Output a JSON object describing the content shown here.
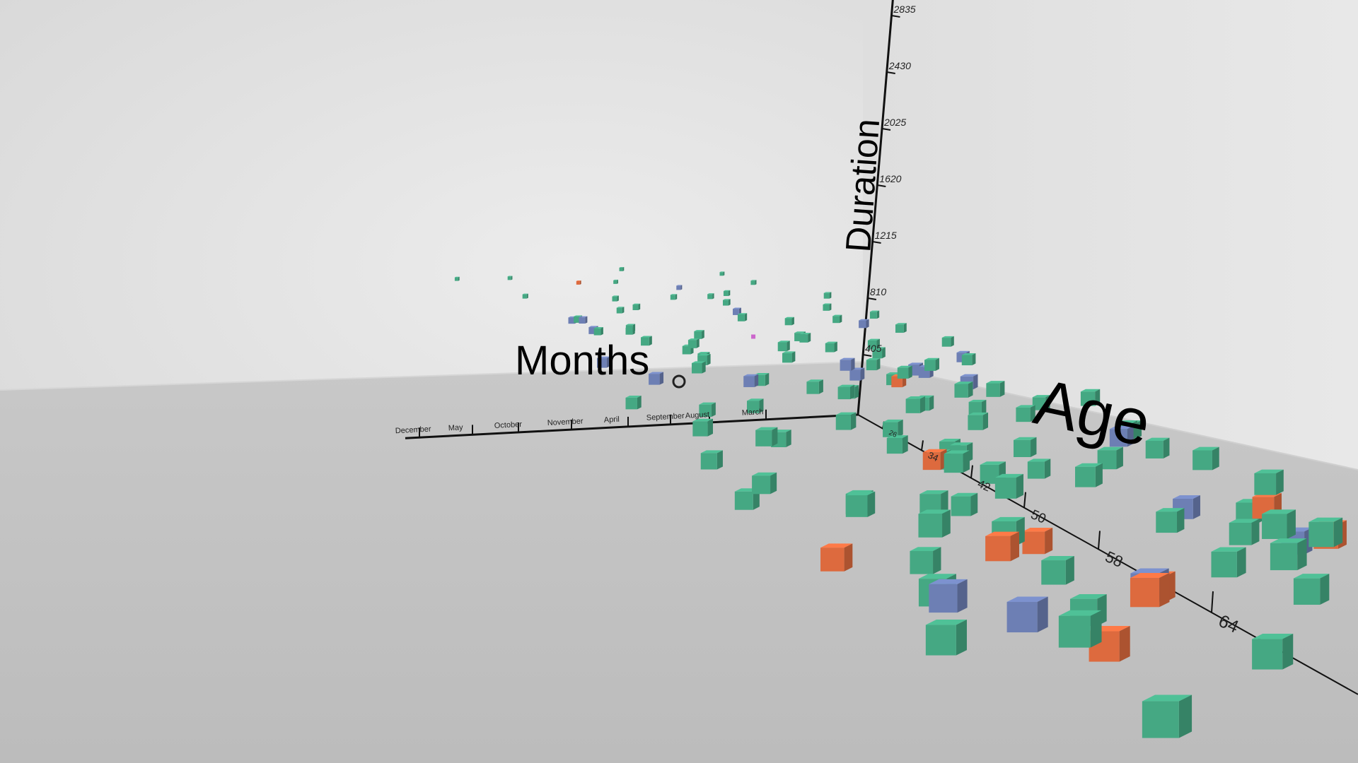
{
  "chart_data": {
    "type": "scatter",
    "dimensions": 3,
    "xlabel": "Months",
    "ylabel": "Duration",
    "zlabel": "Age",
    "x_categories": [
      "December",
      "May",
      "October",
      "November",
      "April",
      "September",
      "August",
      "March"
    ],
    "y_ticks": [
      "405",
      "810",
      "1215",
      "1620",
      "2025",
      "2430",
      "2835"
    ],
    "z_ticks": [
      "26",
      "34",
      "42",
      "50",
      "58",
      "64"
    ],
    "series_colors": [
      "#45a883",
      "#6d7fb4",
      "#dd6a3e"
    ],
    "highlight_color": "#cc66cc",
    "points": [
      {
        "x": 2.1,
        "y": 1216,
        "z": 66,
        "s": 0
      },
      {
        "x": 4.8,
        "y": 3053,
        "z": 68,
        "s": 0
      },
      {
        "x": 4.6,
        "y": 1147,
        "z": 68,
        "s": 1
      },
      {
        "x": 8.5,
        "y": 1100,
        "z": 67,
        "s": 0
      },
      {
        "x": 2.2,
        "y": 1007,
        "z": 64,
        "s": 0
      },
      {
        "x": 0.5,
        "y": 853,
        "z": 62,
        "s": 0
      },
      {
        "x": 7.8,
        "y": 1223,
        "z": 59,
        "s": 0
      },
      {
        "x": 9.7,
        "y": 1068,
        "z": 57,
        "s": 0
      },
      {
        "x": 8.2,
        "y": 1210,
        "z": 57,
        "s": 1
      },
      {
        "x": 3.5,
        "y": 833,
        "z": 57,
        "s": 0
      },
      {
        "x": 6.6,
        "y": 956,
        "z": 57,
        "s": 2
      },
      {
        "x": 5.3,
        "y": 1204,
        "z": 55,
        "s": 2
      },
      {
        "x": 0.7,
        "y": 766,
        "z": 55,
        "s": 0
      },
      {
        "x": 8.8,
        "y": 1167,
        "z": 54,
        "s": 1
      },
      {
        "x": 5.0,
        "y": 1170,
        "z": 54,
        "s": 1
      },
      {
        "x": 8.7,
        "y": 1143,
        "z": 53,
        "s": 0
      },
      {
        "x": 5.5,
        "y": 862,
        "z": 52,
        "s": 0
      },
      {
        "x": -0.9,
        "y": 1210,
        "z": 52,
        "s": 0
      },
      {
        "x": 1.8,
        "y": 1205,
        "z": 52,
        "s": 0
      },
      {
        "x": -0.1,
        "y": 964,
        "z": 52,
        "s": 1
      },
      {
        "x": 1.0,
        "y": 860,
        "z": 51,
        "s": 0
      },
      {
        "x": 3.6,
        "y": 870,
        "z": 50,
        "s": 2
      },
      {
        "x": 2.3,
        "y": 1025,
        "z": 50,
        "s": 0
      },
      {
        "x": 0.2,
        "y": 1142,
        "z": 49,
        "s": 0
      },
      {
        "x": 1.1,
        "y": 1221,
        "z": 49,
        "s": 0
      },
      {
        "x": 6.3,
        "y": 1162,
        "z": 49,
        "s": 2
      },
      {
        "x": 5.9,
        "y": 1202,
        "z": 48,
        "s": 0
      },
      {
        "x": -0.2,
        "y": 1052,
        "z": 48,
        "s": 2
      },
      {
        "x": 4.9,
        "y": 888,
        "z": 48,
        "s": 0
      },
      {
        "x": 7.0,
        "y": 1219,
        "z": 47,
        "s": 0
      },
      {
        "x": 8.8,
        "y": 1001,
        "z": 47,
        "s": 2
      },
      {
        "x": 6.8,
        "y": 871,
        "z": 46,
        "s": 0
      },
      {
        "x": -0.2,
        "y": 873,
        "z": 46,
        "s": 1
      },
      {
        "x": 4.4,
        "y": 904,
        "z": 45,
        "s": 2
      },
      {
        "x": 0.5,
        "y": 890,
        "z": 45,
        "s": 0
      },
      {
        "x": -0.2,
        "y": 1007,
        "z": 44,
        "s": 2
      },
      {
        "x": 7.5,
        "y": 1179,
        "z": 44,
        "s": 0
      },
      {
        "x": -0.2,
        "y": 1185,
        "z": 44,
        "s": 0
      },
      {
        "x": 1.3,
        "y": 864,
        "z": 43,
        "s": 0
      },
      {
        "x": 4.4,
        "y": 1185,
        "z": 43,
        "s": 0
      },
      {
        "x": 5.8,
        "y": 1091,
        "z": 43,
        "s": 0
      },
      {
        "x": -0.2,
        "y": 901,
        "z": 43,
        "s": 0
      },
      {
        "x": 6.9,
        "y": 1052,
        "z": 42,
        "s": 0
      },
      {
        "x": 0.7,
        "y": 886,
        "z": 42,
        "s": 1
      },
      {
        "x": 2.6,
        "y": 1166,
        "z": 42,
        "s": 0
      },
      {
        "x": 4.6,
        "y": 922,
        "z": 41,
        "s": 0
      },
      {
        "x": 0.1,
        "y": 1175,
        "z": 41,
        "s": 0
      },
      {
        "x": 1.6,
        "y": 1144,
        "z": 40,
        "s": 0
      },
      {
        "x": 4.5,
        "y": 1178,
        "z": 40,
        "s": 0
      },
      {
        "x": 3.8,
        "y": 1080,
        "z": 40,
        "s": 0
      },
      {
        "x": 8.1,
        "y": 905,
        "z": 39,
        "s": 0
      },
      {
        "x": 7.8,
        "y": 1018,
        "z": 39,
        "s": 0
      },
      {
        "x": 4.3,
        "y": 1059,
        "z": 38,
        "s": 2
      },
      {
        "x": 0.8,
        "y": 1161,
        "z": 38,
        "s": 1
      },
      {
        "x": 0.1,
        "y": 1058,
        "z": 38,
        "s": 0
      },
      {
        "x": 2.3,
        "y": 1046,
        "z": 37,
        "s": 0
      },
      {
        "x": 3.5,
        "y": 1031,
        "z": 37,
        "s": 0
      },
      {
        "x": 2.0,
        "y": 877,
        "z": 37,
        "s": 0
      },
      {
        "x": 3.9,
        "y": 985,
        "z": 37,
        "s": 0
      },
      {
        "x": 0.1,
        "y": 1063,
        "z": 36,
        "s": 0
      },
      {
        "x": 7.9,
        "y": 1001,
        "z": 36,
        "s": 0
      },
      {
        "x": 6.9,
        "y": 1154,
        "z": 36,
        "s": 0
      },
      {
        "x": 3.1,
        "y": 926,
        "z": 35,
        "s": 0
      },
      {
        "x": 4.1,
        "y": 973,
        "z": 35,
        "s": 0
      },
      {
        "x": -0.3,
        "y": 994,
        "z": 35,
        "s": 0
      },
      {
        "x": 4.8,
        "y": 1098,
        "z": 34,
        "s": 0
      },
      {
        "x": 2.3,
        "y": 1045,
        "z": 34,
        "s": 0
      },
      {
        "x": 6.0,
        "y": 993,
        "z": 34,
        "s": 0
      },
      {
        "x": 3.9,
        "y": 1025,
        "z": 34,
        "s": 0
      },
      {
        "x": 7.5,
        "y": 1106,
        "z": 34,
        "s": 0
      },
      {
        "x": 3.2,
        "y": 1123,
        "z": 33,
        "s": 0
      },
      {
        "x": 1.1,
        "y": 1014,
        "z": 33,
        "s": 0
      },
      {
        "x": -0.1,
        "y": 1109,
        "z": 33,
        "s": 0
      },
      {
        "x": 1.4,
        "y": 1140,
        "z": 32,
        "s": 0
      },
      {
        "x": 2.0,
        "y": 1147,
        "z": 32,
        "s": 0
      },
      {
        "x": 1.6,
        "y": 1133,
        "z": 31,
        "s": 1
      },
      {
        "x": 0.2,
        "y": 947,
        "z": 31,
        "s": 0
      },
      {
        "x": 1.4,
        "y": 936,
        "z": 31,
        "s": 0
      },
      {
        "x": 2.4,
        "y": 989,
        "z": 31,
        "s": 0
      },
      {
        "x": 5.3,
        "y": 963,
        "z": 30,
        "s": 0
      },
      {
        "x": 3.6,
        "y": 1032,
        "z": 30,
        "s": 0
      },
      {
        "x": 4.2,
        "y": 1084,
        "z": 30,
        "s": 0
      },
      {
        "x": 6.2,
        "y": 953,
        "z": 30,
        "s": 0
      },
      {
        "x": 3.2,
        "y": 960,
        "z": 29,
        "s": 0
      },
      {
        "x": 7.3,
        "y": 965,
        "z": 29,
        "s": 0
      },
      {
        "x": 4.6,
        "y": 1017,
        "z": 28,
        "s": 0
      },
      {
        "x": 1.7,
        "y": 1035,
        "z": 28,
        "s": 1
      },
      {
        "x": 1.5,
        "y": 1013,
        "z": 28,
        "s": 1
      },
      {
        "x": 2.1,
        "y": 971,
        "z": 28,
        "s": 0
      },
      {
        "x": 2.0,
        "y": 953,
        "z": 28,
        "s": 2
      },
      {
        "x": 1.4,
        "y": 1064,
        "z": 28,
        "s": 0
      },
      {
        "x": 2.8,
        "y": 1020,
        "z": 28,
        "s": 1
      },
      {
        "x": 4.8,
        "y": 1012,
        "z": 28,
        "s": 1
      },
      {
        "x": 1.9,
        "y": 1016,
        "z": 28,
        "s": 0
      },
      {
        "x": 3.0,
        "y": 1098,
        "z": 28,
        "s": 1
      },
      {
        "x": 6.6,
        "y": 1067,
        "z": 28,
        "s": 1
      },
      {
        "x": 5.5,
        "y": 1062,
        "z": 27,
        "s": 0
      },
      {
        "x": 0.4,
        "y": 1017,
        "z": 27,
        "s": 0
      },
      {
        "x": 2.2,
        "y": 1017,
        "z": 27,
        "s": 0
      },
      {
        "x": 5.1,
        "y": 1047,
        "z": 26,
        "s": 0
      },
      {
        "x": 1.8,
        "y": 1030,
        "z": 26,
        "s": 0
      },
      {
        "x": 0.2,
        "y": 968,
        "z": 26,
        "s": 1
      },
      {
        "x": 7.0,
        "y": 1067,
        "z": 26,
        "s": 1
      },
      {
        "x": 3.5,
        "y": 1033,
        "z": 26,
        "s": 0
      },
      {
        "x": 0.2,
        "y": 1017,
        "z": 25,
        "s": 0
      },
      {
        "x": 4.8,
        "y": 994,
        "z": 25,
        "s": 0
      },
      {
        "x": 2.4,
        "y": 1021,
        "z": 25,
        "s": 0
      },
      {
        "x": 1.6,
        "y": 1026,
        "z": 25,
        "s": 0
      },
      {
        "x": 3.3,
        "y": 1047,
        "z": 25,
        "s": 0
      },
      {
        "x": 4.8,
        "y": 987,
        "z": 24,
        "s": 0
      },
      {
        "x": 0.8,
        "y": 1066,
        "z": 24,
        "s": 0
      },
      {
        "x": 5.6,
        "y": 1069,
        "z": 24,
        "s": 0
      },
      {
        "x": 2.7,
        "y": 1042,
        "z": 24,
        "s": 0
      },
      {
        "x": 2.6,
        "y": 1030,
        "z": 24,
        "s": 0
      },
      {
        "x": 4.7,
        "y": 1031,
        "z": 24,
        "s": 0
      },
      {
        "x": 1.2,
        "y": 1042,
        "z": 23,
        "s": 1
      },
      {
        "x": 4.3,
        "y": 1024,
        "z": 23,
        "s": 0
      },
      {
        "x": 5.3,
        "y": 1009,
        "z": 22,
        "s": 0
      },
      {
        "x": 6.0,
        "y": 1028,
        "z": 22,
        "s": 1
      },
      {
        "x": 5.9,
        "y": 1017,
        "z": 22,
        "s": 0
      },
      {
        "x": 5.3,
        "y": 1029,
        "z": 22,
        "s": 0
      },
      {
        "x": 1.4,
        "y": 1016,
        "z": 22,
        "s": 0
      },
      {
        "x": 0.7,
        "y": 1034,
        "z": 22,
        "s": 0
      },
      {
        "x": 2.3,
        "y": 1018,
        "z": 22,
        "s": 0
      },
      {
        "x": 3.2,
        "y": 1066,
        "z": 22,
        "s": 0
      },
      {
        "x": 3.0,
        "y": 1041,
        "z": 21,
        "s": 1
      },
      {
        "x": 6.1,
        "y": 1040,
        "z": 21,
        "s": 1
      },
      {
        "x": 6.0,
        "y": 1045,
        "z": 21,
        "s": 0
      },
      {
        "x": 1.3,
        "y": 1038,
        "z": 21,
        "s": 0
      },
      {
        "x": 5.9,
        "y": 1037,
        "z": 21,
        "s": 1
      },
      {
        "x": 4.6,
        "y": 1043,
        "z": 20,
        "s": 0
      },
      {
        "x": 2.9,
        "y": 1042,
        "z": 20,
        "s": 0
      },
      {
        "x": 4.9,
        "y": 1025,
        "z": 20,
        "s": 0
      },
      {
        "x": 1.0,
        "y": 1055,
        "z": 20,
        "s": 0
      },
      {
        "x": 2.6,
        "y": 1040,
        "z": 19,
        "s": 0
      },
      {
        "x": 4.7,
        "y": 1043,
        "z": 19,
        "s": 0
      },
      {
        "x": 3.6,
        "y": 1032,
        "z": 19,
        "s": 0
      },
      {
        "x": 2.9,
        "y": 1023,
        "z": 19,
        "s": 0
      },
      {
        "x": 3.2,
        "y": 1030,
        "z": 18,
        "s": 1
      },
      {
        "x": 1.8,
        "y": 1039,
        "z": 18,
        "s": 0
      },
      {
        "x": 6.1,
        "y": 1025,
        "z": 18,
        "s": 0
      },
      {
        "x": 4.8,
        "y": 1035,
        "z": 17,
        "s": 2
      },
      {
        "x": 2.1,
        "y": 1046,
        "z": 17,
        "s": 0
      },
      {
        "x": 4.1,
        "y": 1026,
        "z": 17,
        "s": 0
      },
      {
        "x": 3.7,
        "y": 1048,
        "z": 16,
        "s": 0
      },
      {
        "x": 5.8,
        "y": 1025,
        "z": 16,
        "s": 0
      },
      {
        "x": 6.8,
        "y": 1039,
        "z": 16,
        "s": 0
      }
    ]
  }
}
